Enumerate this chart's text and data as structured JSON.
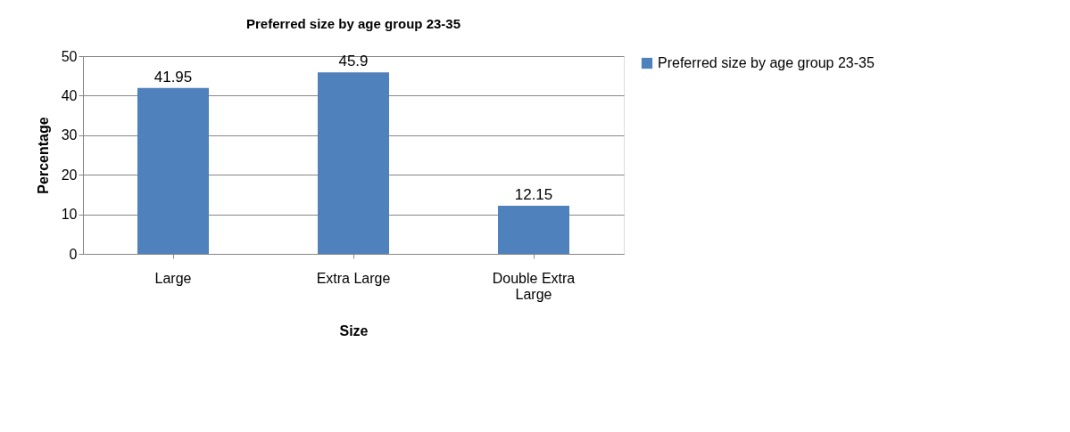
{
  "chart_data": {
    "type": "bar",
    "title": "Preferred size by age group 23-35",
    "xlabel": "Size",
    "ylabel": "Percentage",
    "categories": [
      "Large",
      "Extra Large",
      "Double Extra Large"
    ],
    "series": [
      {
        "name": "Preferred size by age group 23-35",
        "color": "#4f81bd",
        "values": [
          41.95,
          45.9,
          12.15
        ]
      }
    ],
    "ylim": [
      0,
      50
    ],
    "yticks": [
      0,
      10,
      20,
      30,
      40,
      50
    ],
    "grid": "y",
    "legend": "right",
    "data_labels": true
  }
}
